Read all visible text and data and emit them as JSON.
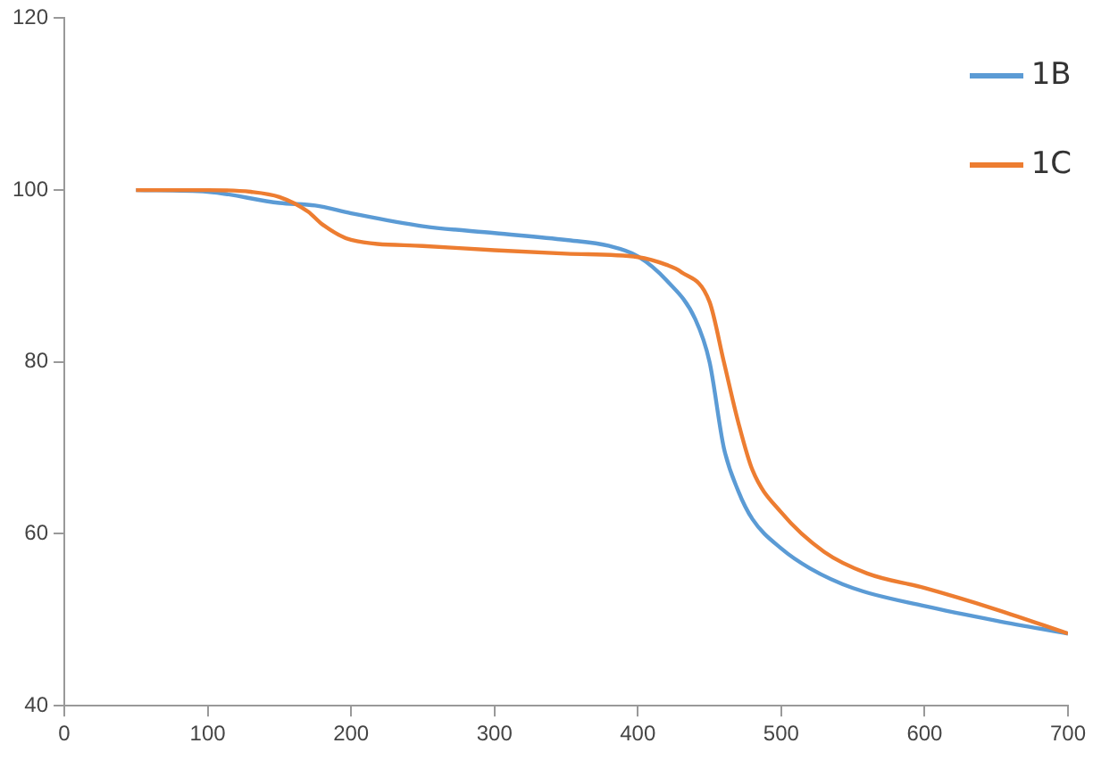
{
  "chart_data": {
    "type": "line",
    "xlim": [
      0,
      700
    ],
    "xticks": [
      0,
      100,
      200,
      300,
      400,
      500,
      600,
      700
    ],
    "ylim": [
      40,
      120
    ],
    "yticks": [
      40,
      60,
      80,
      100,
      120
    ],
    "grid": false,
    "legend": "top right",
    "marker": "none",
    "series": [
      {
        "name": "1B",
        "color": "#5b9bd5",
        "x": [
          50,
          100,
          150,
          175,
          200,
          250,
          300,
          350,
          380,
          400,
          420,
          440,
          450,
          460,
          470,
          480,
          500,
          520,
          550,
          600,
          650,
          700
        ],
        "values": [
          100,
          99.8,
          98.5,
          98.2,
          97.3,
          95.8,
          95,
          94.2,
          93.5,
          92.3,
          89.5,
          85,
          80,
          70,
          65,
          61.7,
          58.3,
          56,
          53.7,
          51.6,
          49.9,
          48.4
        ]
      },
      {
        "name": "1C",
        "color": "#ed7d31",
        "x": [
          50,
          100,
          130,
          150,
          170,
          180,
          200,
          250,
          300,
          350,
          400,
          420,
          430,
          450,
          460,
          470,
          480,
          500,
          530,
          560,
          600,
          650,
          700
        ],
        "values": [
          100,
          100,
          99.8,
          99.2,
          97.5,
          96,
          94.2,
          93.5,
          93,
          92.6,
          92.2,
          91.3,
          90.5,
          87,
          80,
          73,
          67.4,
          62.5,
          57.9,
          55.4,
          53.7,
          51.2,
          48.4
        ]
      }
    ]
  }
}
